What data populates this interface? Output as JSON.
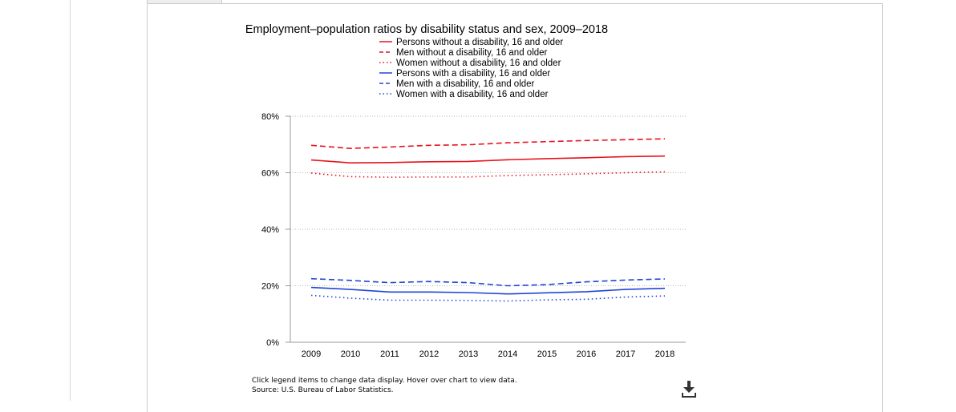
{
  "footer": {
    "note": "Click legend items to change data display. Hover over chart to view data.",
    "source": "Source: U.S. Bureau of Labor Statistics."
  },
  "download": {
    "icon": "download-icon"
  },
  "chart_data": {
    "type": "line",
    "title": "Employment–population ratios by disability status and sex, 2009–2018",
    "xlabel": "",
    "ylabel": "",
    "x": [
      "2009",
      "2010",
      "2011",
      "2012",
      "2013",
      "2014",
      "2015",
      "2016",
      "2017",
      "2018"
    ],
    "ylim": [
      0,
      80
    ],
    "yticks": [
      0,
      20,
      40,
      60,
      80
    ],
    "ytick_labels": [
      "0%",
      "20%",
      "40%",
      "60%",
      "80%"
    ],
    "grid": "horizontal dotted",
    "legend_position": "top",
    "series": [
      {
        "name": "Persons without a disability, 16 and older",
        "color": "#e8131d",
        "dash": "solid",
        "values": [
          64.5,
          63.5,
          63.6,
          63.9,
          64.0,
          64.6,
          65.0,
          65.3,
          65.7,
          65.9
        ]
      },
      {
        "name": "Men without a disability, 16 and older",
        "color": "#e8131d",
        "dash": "dashed",
        "values": [
          69.7,
          68.6,
          69.1,
          69.7,
          69.9,
          70.6,
          71.0,
          71.4,
          71.7,
          72.0
        ]
      },
      {
        "name": "Women without a disability, 16 and older",
        "color": "#e8131d",
        "dash": "dotted",
        "values": [
          59.9,
          58.6,
          58.4,
          58.5,
          58.5,
          59.0,
          59.3,
          59.6,
          60.0,
          60.3
        ]
      },
      {
        "name": "Persons with a disability, 16 and older",
        "color": "#1f46d6",
        "dash": "solid",
        "values": [
          19.4,
          18.7,
          17.8,
          17.8,
          17.6,
          17.1,
          17.5,
          17.9,
          18.7,
          19.1
        ]
      },
      {
        "name": "Men with a disability, 16 and older",
        "color": "#1f46d6",
        "dash": "dashed",
        "values": [
          22.5,
          21.9,
          21.1,
          21.5,
          21.1,
          20.0,
          20.4,
          21.4,
          22.0,
          22.4
        ]
      },
      {
        "name": "Women with a disability, 16 and older",
        "color": "#1f46d6",
        "dash": "dotted",
        "values": [
          16.6,
          15.6,
          14.9,
          14.9,
          14.8,
          14.6,
          15.0,
          15.2,
          16.0,
          16.4
        ]
      }
    ]
  }
}
